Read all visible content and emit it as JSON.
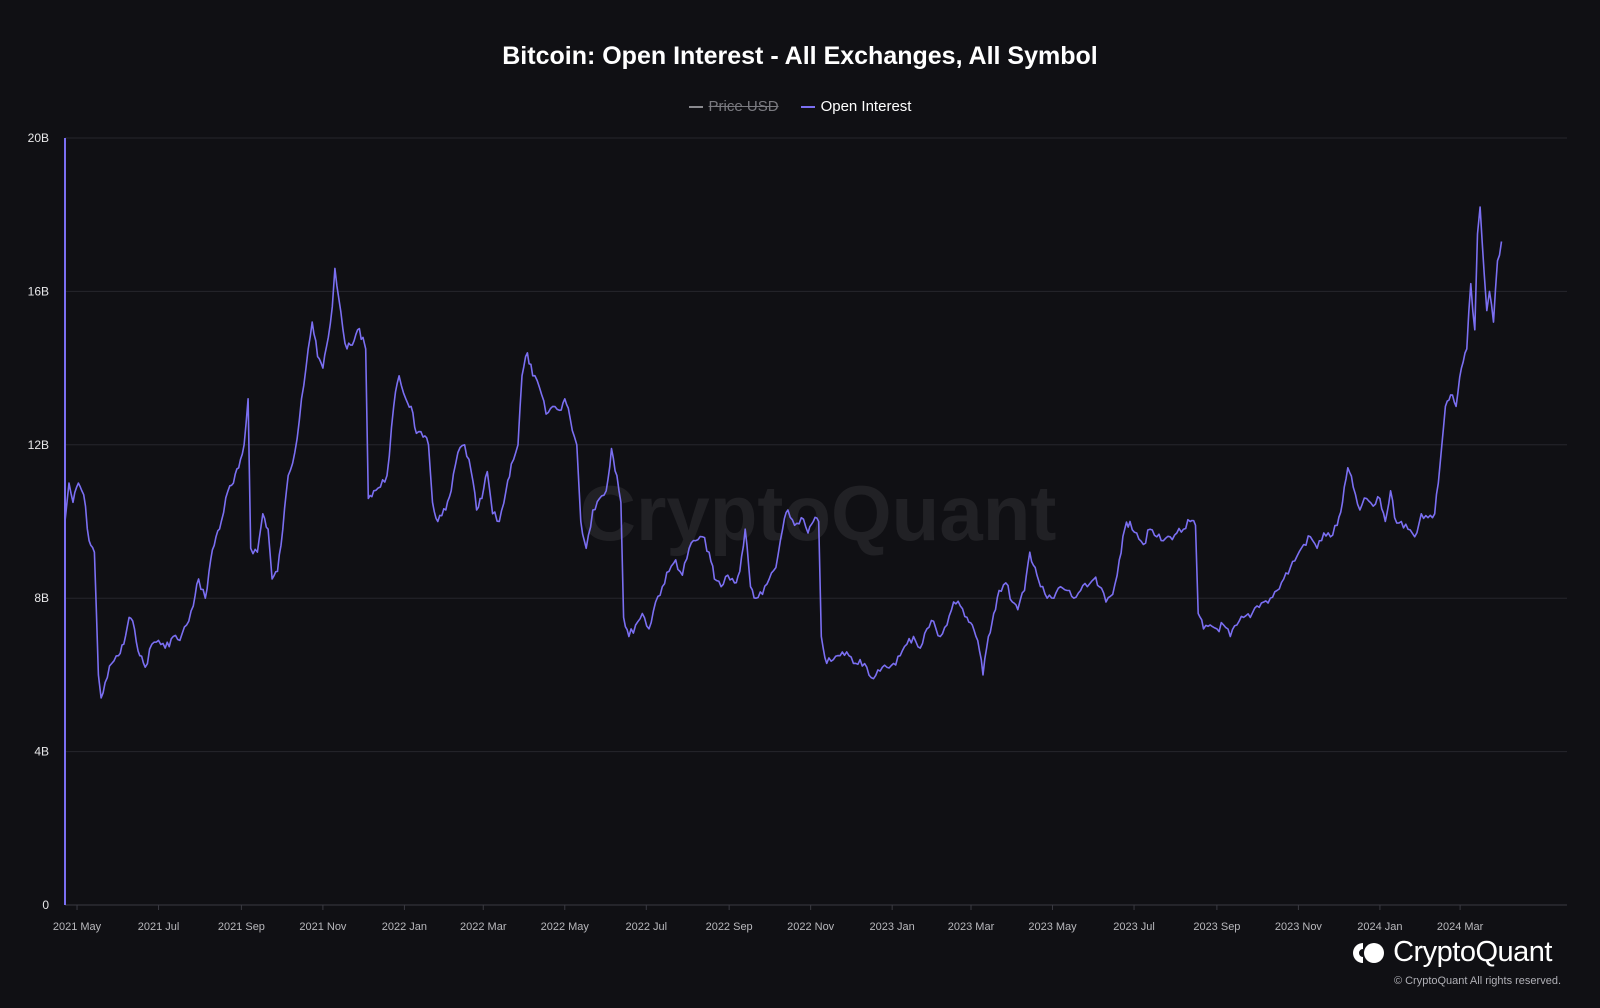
{
  "chart_data": {
    "type": "line",
    "title": "Bitcoin: Open Interest - All Exchanges, All Symbol",
    "legend": [
      {
        "name": "Price USD",
        "color": "#8a8a8f",
        "hidden": true
      },
      {
        "name": "Open Interest",
        "color": "#7b6ff2",
        "hidden": false
      }
    ],
    "watermark": "CryptoQuant",
    "y_ticks": [
      "0",
      "4B",
      "8B",
      "12B",
      "16B",
      "20B"
    ],
    "y_tick_values": [
      0,
      4,
      8,
      12,
      16,
      20
    ],
    "ylim": [
      0,
      20
    ],
    "y_unit": "B",
    "x_ticks": [
      "2021 May",
      "2021 Jul",
      "2021 Sep",
      "2021 Nov",
      "2022 Jan",
      "2022 Mar",
      "2022 May",
      "2022 Jul",
      "2022 Sep",
      "2022 Nov",
      "2023 Jan",
      "2023 Mar",
      "2023 May",
      "2023 Jul",
      "2023 Sep",
      "2023 Nov",
      "2024 Jan",
      "2024 Mar"
    ],
    "x_tick_dates": [
      "2021-05-01",
      "2021-07-01",
      "2021-09-01",
      "2021-11-01",
      "2022-01-01",
      "2022-03-01",
      "2022-05-01",
      "2022-07-01",
      "2022-09-01",
      "2022-11-01",
      "2023-01-01",
      "2023-03-01",
      "2023-05-01",
      "2023-07-01",
      "2023-09-01",
      "2023-11-01",
      "2024-01-01",
      "2024-03-01"
    ],
    "xlim": [
      "2021-04-22",
      "2024-05-20"
    ],
    "grid": true,
    "series": [
      {
        "name": "Open Interest",
        "color": "#7b6ff2",
        "points": [
          [
            "2021-04-22",
            10.0
          ],
          [
            "2021-04-25",
            11.0
          ],
          [
            "2021-04-28",
            10.5
          ],
          [
            "2021-05-02",
            11.0
          ],
          [
            "2021-05-06",
            10.7
          ],
          [
            "2021-05-10",
            9.5
          ],
          [
            "2021-05-14",
            9.2
          ],
          [
            "2021-05-17",
            6.0
          ],
          [
            "2021-05-19",
            5.4
          ],
          [
            "2021-05-22",
            5.8
          ],
          [
            "2021-05-27",
            6.3
          ],
          [
            "2021-06-01",
            6.5
          ],
          [
            "2021-06-05",
            6.8
          ],
          [
            "2021-06-09",
            7.5
          ],
          [
            "2021-06-13",
            7.2
          ],
          [
            "2021-06-17",
            6.5
          ],
          [
            "2021-06-21",
            6.2
          ],
          [
            "2021-06-26",
            6.8
          ],
          [
            "2021-07-01",
            6.9
          ],
          [
            "2021-07-06",
            6.7
          ],
          [
            "2021-07-12",
            7.0
          ],
          [
            "2021-07-17",
            6.9
          ],
          [
            "2021-07-22",
            7.3
          ],
          [
            "2021-07-27",
            7.8
          ],
          [
            "2021-07-31",
            8.5
          ],
          [
            "2021-08-05",
            8.0
          ],
          [
            "2021-08-09",
            9.0
          ],
          [
            "2021-08-13",
            9.6
          ],
          [
            "2021-08-17",
            10.0
          ],
          [
            "2021-08-22",
            10.8
          ],
          [
            "2021-08-26",
            11.0
          ],
          [
            "2021-08-30",
            11.4
          ],
          [
            "2021-09-03",
            12.0
          ],
          [
            "2021-09-06",
            13.2
          ],
          [
            "2021-09-08",
            9.3
          ],
          [
            "2021-09-13",
            9.2
          ],
          [
            "2021-09-17",
            10.2
          ],
          [
            "2021-09-21",
            9.8
          ],
          [
            "2021-09-24",
            8.5
          ],
          [
            "2021-09-28",
            8.7
          ],
          [
            "2021-10-02",
            9.8
          ],
          [
            "2021-10-06",
            11.2
          ],
          [
            "2021-10-11",
            11.8
          ],
          [
            "2021-10-16",
            13.2
          ],
          [
            "2021-10-21",
            14.5
          ],
          [
            "2021-10-24",
            15.2
          ],
          [
            "2021-10-28",
            14.3
          ],
          [
            "2021-11-01",
            14.0
          ],
          [
            "2021-11-05",
            14.8
          ],
          [
            "2021-11-08",
            15.6
          ],
          [
            "2021-11-10",
            16.6
          ],
          [
            "2021-11-13",
            15.8
          ],
          [
            "2021-11-16",
            15.0
          ],
          [
            "2021-11-19",
            14.5
          ],
          [
            "2021-11-23",
            14.6
          ],
          [
            "2021-11-27",
            15.0
          ],
          [
            "2021-12-01",
            14.8
          ],
          [
            "2021-12-03",
            14.5
          ],
          [
            "2021-12-05",
            10.6
          ],
          [
            "2021-12-09",
            10.8
          ],
          [
            "2021-12-14",
            10.9
          ],
          [
            "2021-12-19",
            11.2
          ],
          [
            "2021-12-24",
            13.0
          ],
          [
            "2021-12-28",
            13.8
          ],
          [
            "2022-01-02",
            13.2
          ],
          [
            "2022-01-06",
            13.0
          ],
          [
            "2022-01-10",
            12.3
          ],
          [
            "2022-01-15",
            12.2
          ],
          [
            "2022-01-19",
            12.0
          ],
          [
            "2022-01-22",
            10.5
          ],
          [
            "2022-01-26",
            10.0
          ],
          [
            "2022-02-01",
            10.3
          ],
          [
            "2022-02-05",
            10.8
          ],
          [
            "2022-02-10",
            11.8
          ],
          [
            "2022-02-15",
            12.0
          ],
          [
            "2022-02-20",
            11.3
          ],
          [
            "2022-02-24",
            10.3
          ],
          [
            "2022-02-28",
            10.6
          ],
          [
            "2022-03-04",
            11.3
          ],
          [
            "2022-03-08",
            10.2
          ],
          [
            "2022-03-13",
            10.0
          ],
          [
            "2022-03-18",
            10.8
          ],
          [
            "2022-03-22",
            11.5
          ],
          [
            "2022-03-27",
            12.0
          ],
          [
            "2022-03-30",
            13.8
          ],
          [
            "2022-04-03",
            14.4
          ],
          [
            "2022-04-07",
            13.8
          ],
          [
            "2022-04-12",
            13.5
          ],
          [
            "2022-04-17",
            12.8
          ],
          [
            "2022-04-22",
            13.0
          ],
          [
            "2022-04-27",
            12.9
          ],
          [
            "2022-05-01",
            13.2
          ],
          [
            "2022-05-05",
            12.7
          ],
          [
            "2022-05-10",
            12.0
          ],
          [
            "2022-05-13",
            10.0
          ],
          [
            "2022-05-17",
            9.3
          ],
          [
            "2022-05-22",
            10.3
          ],
          [
            "2022-05-27",
            10.6
          ],
          [
            "2022-06-01",
            10.8
          ],
          [
            "2022-06-05",
            11.9
          ],
          [
            "2022-06-09",
            11.2
          ],
          [
            "2022-06-12",
            10.5
          ],
          [
            "2022-06-14",
            7.5
          ],
          [
            "2022-06-18",
            7.0
          ],
          [
            "2022-06-23",
            7.3
          ],
          [
            "2022-06-28",
            7.6
          ],
          [
            "2022-07-03",
            7.2
          ],
          [
            "2022-07-08",
            7.9
          ],
          [
            "2022-07-13",
            8.3
          ],
          [
            "2022-07-18",
            8.7
          ],
          [
            "2022-07-23",
            9.0
          ],
          [
            "2022-07-28",
            8.6
          ],
          [
            "2022-08-02",
            9.3
          ],
          [
            "2022-08-07",
            9.5
          ],
          [
            "2022-08-12",
            9.6
          ],
          [
            "2022-08-17",
            9.2
          ],
          [
            "2022-08-21",
            8.5
          ],
          [
            "2022-08-26",
            8.3
          ],
          [
            "2022-08-31",
            8.6
          ],
          [
            "2022-09-05",
            8.4
          ],
          [
            "2022-09-09",
            8.7
          ],
          [
            "2022-09-13",
            9.8
          ],
          [
            "2022-09-17",
            8.3
          ],
          [
            "2022-09-21",
            8.0
          ],
          [
            "2022-09-26",
            8.1
          ],
          [
            "2022-10-01",
            8.5
          ],
          [
            "2022-10-06",
            8.8
          ],
          [
            "2022-10-11",
            9.8
          ],
          [
            "2022-10-15",
            10.3
          ],
          [
            "2022-10-20",
            9.9
          ],
          [
            "2022-10-25",
            10.1
          ],
          [
            "2022-10-30",
            9.7
          ],
          [
            "2022-11-03",
            10.0
          ],
          [
            "2022-11-07",
            10.0
          ],
          [
            "2022-11-09",
            7.0
          ],
          [
            "2022-11-13",
            6.3
          ],
          [
            "2022-11-18",
            6.4
          ],
          [
            "2022-11-23",
            6.5
          ],
          [
            "2022-11-28",
            6.6
          ],
          [
            "2022-12-03",
            6.3
          ],
          [
            "2022-12-08",
            6.4
          ],
          [
            "2022-12-13",
            6.2
          ],
          [
            "2022-12-18",
            5.9
          ],
          [
            "2022-12-23",
            6.1
          ],
          [
            "2022-12-28",
            6.2
          ],
          [
            "2023-01-02",
            6.3
          ],
          [
            "2023-01-07",
            6.5
          ],
          [
            "2023-01-12",
            6.8
          ],
          [
            "2023-01-17",
            7.0
          ],
          [
            "2023-01-22",
            6.7
          ],
          [
            "2023-01-27",
            7.2
          ],
          [
            "2023-02-01",
            7.4
          ],
          [
            "2023-02-06",
            7.0
          ],
          [
            "2023-02-11",
            7.3
          ],
          [
            "2023-02-16",
            7.9
          ],
          [
            "2023-02-21",
            7.8
          ],
          [
            "2023-02-26",
            7.5
          ],
          [
            "2023-03-02",
            7.3
          ],
          [
            "2023-03-06",
            6.9
          ],
          [
            "2023-03-10",
            6.0
          ],
          [
            "2023-03-14",
            7.0
          ],
          [
            "2023-03-18",
            7.6
          ],
          [
            "2023-03-22",
            8.2
          ],
          [
            "2023-03-27",
            8.4
          ],
          [
            "2023-04-01",
            7.9
          ],
          [
            "2023-04-05",
            7.7
          ],
          [
            "2023-04-10",
            8.2
          ],
          [
            "2023-04-14",
            9.2
          ],
          [
            "2023-04-18",
            8.8
          ],
          [
            "2023-04-22",
            8.3
          ],
          [
            "2023-04-27",
            8.0
          ],
          [
            "2023-05-02",
            8.0
          ],
          [
            "2023-05-07",
            8.3
          ],
          [
            "2023-05-12",
            8.2
          ],
          [
            "2023-05-17",
            8.0
          ],
          [
            "2023-05-22",
            8.2
          ],
          [
            "2023-05-27",
            8.3
          ],
          [
            "2023-06-01",
            8.5
          ],
          [
            "2023-06-05",
            8.3
          ],
          [
            "2023-06-10",
            7.9
          ],
          [
            "2023-06-15",
            8.1
          ],
          [
            "2023-06-20",
            9.0
          ],
          [
            "2023-06-24",
            9.8
          ],
          [
            "2023-06-28",
            10.0
          ],
          [
            "2023-07-03",
            9.7
          ],
          [
            "2023-07-08",
            9.4
          ],
          [
            "2023-07-13",
            9.8
          ],
          [
            "2023-07-18",
            9.6
          ],
          [
            "2023-07-23",
            9.5
          ],
          [
            "2023-07-28",
            9.6
          ],
          [
            "2023-08-02",
            9.7
          ],
          [
            "2023-08-07",
            9.8
          ],
          [
            "2023-08-12",
            10.0
          ],
          [
            "2023-08-16",
            9.9
          ],
          [
            "2023-08-18",
            7.6
          ],
          [
            "2023-08-22",
            7.2
          ],
          [
            "2023-08-27",
            7.3
          ],
          [
            "2023-09-01",
            7.2
          ],
          [
            "2023-09-06",
            7.3
          ],
          [
            "2023-09-11",
            7.0
          ],
          [
            "2023-09-16",
            7.3
          ],
          [
            "2023-09-21",
            7.5
          ],
          [
            "2023-09-26",
            7.5
          ],
          [
            "2023-10-01",
            7.8
          ],
          [
            "2023-10-06",
            7.9
          ],
          [
            "2023-10-11",
            8.0
          ],
          [
            "2023-10-16",
            8.2
          ],
          [
            "2023-10-21",
            8.5
          ],
          [
            "2023-10-26",
            8.8
          ],
          [
            "2023-10-31",
            9.1
          ],
          [
            "2023-11-05",
            9.4
          ],
          [
            "2023-11-10",
            9.6
          ],
          [
            "2023-11-15",
            9.3
          ],
          [
            "2023-11-20",
            9.7
          ],
          [
            "2023-11-25",
            9.6
          ],
          [
            "2023-11-30",
            9.9
          ],
          [
            "2023-12-04",
            10.5
          ],
          [
            "2023-12-08",
            11.4
          ],
          [
            "2023-12-12",
            10.9
          ],
          [
            "2023-12-17",
            10.3
          ],
          [
            "2023-12-22",
            10.6
          ],
          [
            "2023-12-27",
            10.4
          ],
          [
            "2024-01-01",
            10.6
          ],
          [
            "2024-01-05",
            10.0
          ],
          [
            "2024-01-09",
            10.8
          ],
          [
            "2024-01-12",
            10.1
          ],
          [
            "2024-01-17",
            10.0
          ],
          [
            "2024-01-22",
            9.8
          ],
          [
            "2024-01-27",
            9.6
          ],
          [
            "2024-02-01",
            10.2
          ],
          [
            "2024-02-06",
            10.1
          ],
          [
            "2024-02-11",
            10.2
          ],
          [
            "2024-02-15",
            11.5
          ],
          [
            "2024-02-19",
            13.0
          ],
          [
            "2024-02-23",
            13.3
          ],
          [
            "2024-02-27",
            13.0
          ],
          [
            "2024-03-02",
            14.0
          ],
          [
            "2024-03-06",
            14.5
          ],
          [
            "2024-03-09",
            16.2
          ],
          [
            "2024-03-12",
            15.0
          ],
          [
            "2024-03-14",
            17.5
          ],
          [
            "2024-03-16",
            18.2
          ],
          [
            "2024-03-19",
            16.5
          ],
          [
            "2024-03-21",
            15.5
          ],
          [
            "2024-03-23",
            16.0
          ],
          [
            "2024-03-26",
            15.2
          ],
          [
            "2024-03-29",
            16.8
          ],
          [
            "2024-04-01",
            17.3
          ]
        ]
      }
    ]
  },
  "footer": {
    "brand": "CryptoQuant",
    "copyright": "© CryptoQuant All rights reserved."
  }
}
